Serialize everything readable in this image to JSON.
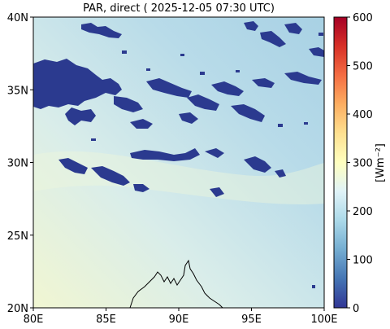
{
  "title": "PAR, direct ( 2025-12-05 07:30 UTC)",
  "axes": {
    "lon_range": [
      80,
      100
    ],
    "lat_range": [
      20,
      40
    ],
    "x_ticks": [
      {
        "value": 80,
        "label": "80E"
      },
      {
        "value": 85,
        "label": "85E"
      },
      {
        "value": 90,
        "label": "90E"
      },
      {
        "value": 95,
        "label": "95E"
      },
      {
        "value": 100,
        "label": "100E"
      }
    ],
    "y_ticks": [
      {
        "value": 20,
        "label": "20N"
      },
      {
        "value": 25,
        "label": "25N"
      },
      {
        "value": 30,
        "label": "30N"
      },
      {
        "value": 35,
        "label": "35N"
      },
      {
        "value": 40,
        "label": "40N"
      }
    ]
  },
  "colorbar": {
    "label": "[Wm⁻²]",
    "range": [
      0,
      600
    ],
    "colormap": "RdYlBu_r",
    "ticks": [
      {
        "value": 0,
        "label": "0"
      },
      {
        "value": 100,
        "label": "100"
      },
      {
        "value": 200,
        "label": "200"
      },
      {
        "value": 300,
        "label": "300"
      },
      {
        "value": 400,
        "label": "400"
      },
      {
        "value": 500,
        "label": "500"
      },
      {
        "value": 600,
        "label": "600"
      }
    ],
    "stops": [
      "#313695",
      "#4575b4",
      "#74add1",
      "#abd9e9",
      "#e0f3f8",
      "#ffffbf",
      "#fee090",
      "#fdae61",
      "#f46d43",
      "#d73027",
      "#a50026"
    ]
  },
  "colors": {
    "field_low": "#a9d3e5",
    "field_mid": "#cfe7ef",
    "field_high": "#f1f6d2",
    "cloud": "#2b3a8f",
    "coast": "#000000"
  },
  "map_data": {
    "field_value_range_wm2": [
      190,
      300
    ],
    "cloud_value_wm2": 0
  }
}
